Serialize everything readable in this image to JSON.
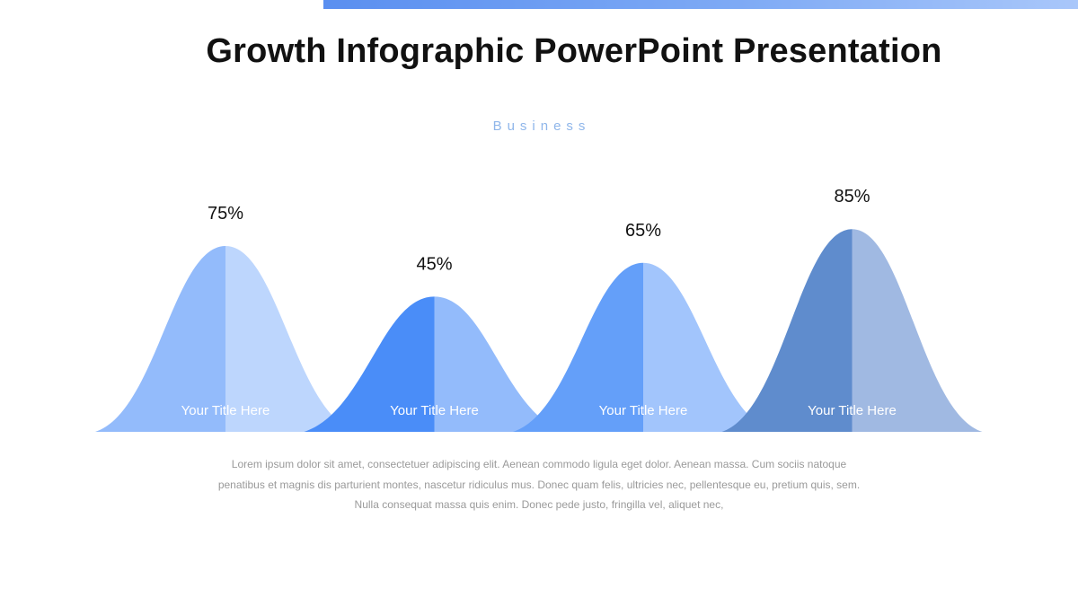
{
  "slide": {
    "title": "Growth Infographic PowerPoint Presentation",
    "subtitle": "Business",
    "accent_color": "#5a8ff0",
    "description_lines": [
      "Lorem ipsum dolor sit amet, consectetuer adipiscing elit. Aenean commodo ligula eget dolor. Aenean massa. Cum sociis natoque",
      "penatibus et magnis dis parturient montes, nascetur ridiculus mus. Donec quam felis, ultricies nec, pellentesque eu, pretium quis, sem.",
      "Nulla consequat massa quis enim. Donec pede justo, fringilla vel, aliquet nec,"
    ]
  },
  "chart_data": {
    "type": "area",
    "shape": "bell-curves",
    "value_unit": "%",
    "ylim": [
      0,
      100
    ],
    "items": [
      {
        "label": "Your Title Here",
        "value": 75,
        "value_label": "75%",
        "color_left": "#93bbfb",
        "color_right": "#bdd6fd"
      },
      {
        "label": "Your Title Here",
        "value": 45,
        "value_label": "45%",
        "color_left": "#4a8df8",
        "color_right": "#93bbfb"
      },
      {
        "label": "Your Title Here",
        "value": 65,
        "value_label": "65%",
        "color_left": "#649ff9",
        "color_right": "#a2c5fc"
      },
      {
        "label": "Your Title Here",
        "value": 85,
        "value_label": "85%",
        "color_left": "#5f8ccd",
        "color_right": "#a0b9e2"
      }
    ]
  }
}
